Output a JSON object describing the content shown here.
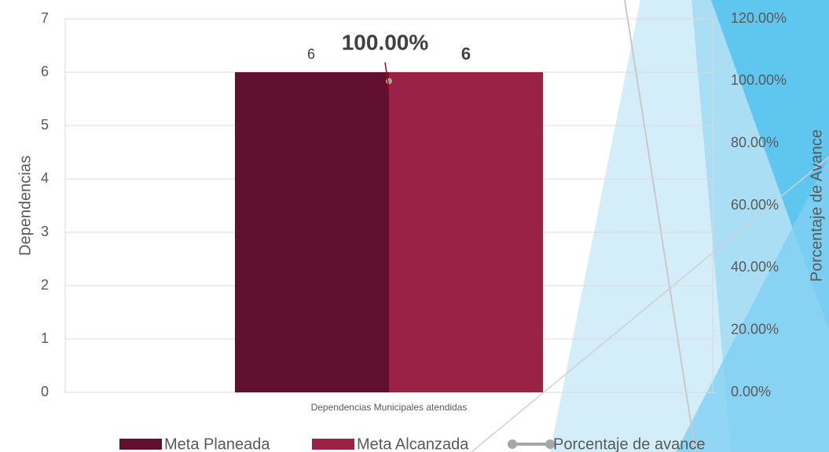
{
  "chart_data": {
    "type": "bar",
    "categories": [
      "Dependencias Municipales atendidas"
    ],
    "series": [
      {
        "name": "Meta Planeada",
        "color": "#611030",
        "values": [
          6
        ]
      },
      {
        "name": "Meta Alcanzada",
        "color": "#9b2247",
        "values": [
          6
        ]
      },
      {
        "name": "Porcentaje de avance",
        "type": "line",
        "axis": "y2",
        "color": "#a6a6a6",
        "values": [
          100
        ],
        "value_labels": [
          "100.00%"
        ]
      }
    ],
    "y_label": "Dependencias",
    "y2_label": "Porcentaje de Avance",
    "ylim": [
      0,
      7
    ],
    "yticks": [
      0,
      1,
      2,
      3,
      4,
      5,
      6,
      7
    ],
    "y2lim": [
      0,
      120
    ],
    "y2ticks": [
      {
        "value": 0,
        "label": "0.00%"
      },
      {
        "value": 20,
        "label": "20.00%"
      },
      {
        "value": 40,
        "label": "40.00%"
      },
      {
        "value": 60,
        "label": "60.00%"
      },
      {
        "value": 80,
        "label": "80.00%"
      },
      {
        "value": 100,
        "label": "100.00%"
      },
      {
        "value": 120,
        "label": "120.00%"
      }
    ],
    "grid": true,
    "legend": "bottom"
  }
}
